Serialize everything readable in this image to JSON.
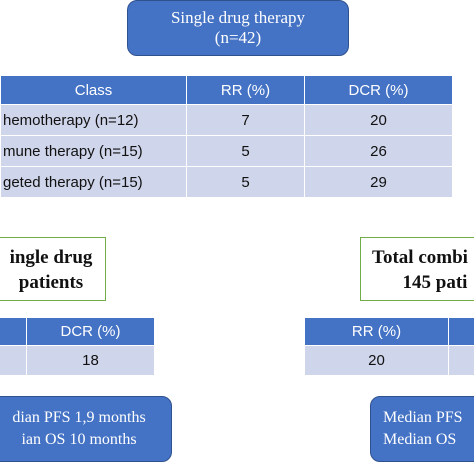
{
  "top_box": {
    "line1": "Single drug therapy",
    "line2": "(n=42)"
  },
  "main_table": {
    "headers": [
      "Class",
      "RR (%)",
      "DCR (%)"
    ],
    "rows": [
      {
        "class": "hemotherapy (n=12)",
        "rr": "7",
        "dcr": "20"
      },
      {
        "class": "mune therapy (n=15)",
        "rr": "5",
        "dcr": "26"
      },
      {
        "class": "geted therapy (n=15)",
        "rr": "5",
        "dcr": "29"
      }
    ]
  },
  "left": {
    "title_line1": "ingle drug",
    "title_line2": "patients",
    "table": {
      "header": "DCR (%)",
      "value": "18"
    },
    "summary_line1": "dian PFS 1,9 months",
    "summary_line2": "ian OS 10 months"
  },
  "right": {
    "title_line1": "Total combi",
    "title_line2": "145 pati",
    "table": {
      "header": "RR (%)",
      "value": "20"
    },
    "summary_line1": "Median PFS",
    "summary_line2": "Median OS"
  },
  "colors": {
    "header_blue": "#4472c4",
    "row_fill": "#cfd5ea",
    "box_border_green": "#70ad47"
  }
}
